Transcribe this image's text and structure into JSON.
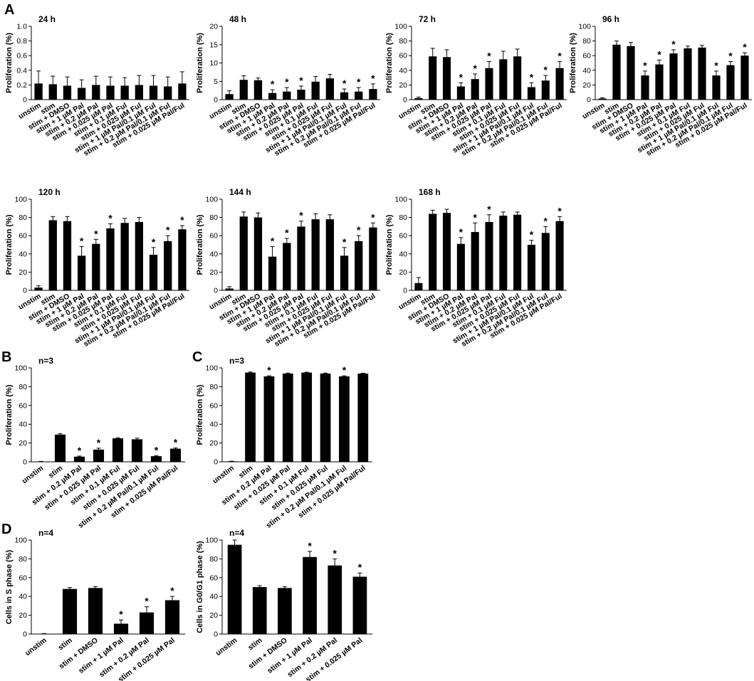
{
  "panel_letters": [
    "A",
    "B",
    "C",
    "D"
  ],
  "chart_data": [
    {
      "type": "bar",
      "panel": "A",
      "title": "24 h",
      "ylabel": "Proliferation (%)",
      "ylim": [
        0,
        1.0
      ],
      "yticks": [
        "0",
        "0.2",
        "0.4",
        "0.6",
        "0.8",
        "1.0"
      ],
      "grid": false,
      "categories": [
        "unstim",
        "stim",
        "stim + DMSO",
        "stim + 1 µM Pal",
        "stim + 0.2 µM Pal",
        "stim + 0.025 µM Pal",
        "stim + 0.1 µM Ful",
        "stim + 0.025 µM Ful",
        "stim + 1 µM Pal/0.1 µM Ful",
        "stim + 0.2 µM Pal/0.1 µM Ful",
        "stim + 0.025 µM Pal/Ful"
      ],
      "values": [
        0.22,
        0.21,
        0.19,
        0.16,
        0.2,
        0.19,
        0.19,
        0.2,
        0.19,
        0.18,
        0.22
      ],
      "errors": [
        0.17,
        0.11,
        0.12,
        0.11,
        0.12,
        0.12,
        0.11,
        0.13,
        0.14,
        0.13,
        0.16
      ],
      "significant": [
        false,
        false,
        false,
        false,
        false,
        false,
        false,
        false,
        false,
        false,
        false
      ]
    },
    {
      "type": "bar",
      "panel": "",
      "title": "48 h",
      "ylabel": "Proliferation (%)",
      "ylim": [
        0,
        20
      ],
      "yticks": [
        "0",
        "5",
        "10",
        "15",
        "20"
      ],
      "grid": false,
      "categories": [
        "unstim",
        "stim",
        "stim + DMSO",
        "stim + 1 µM Pal",
        "stim + 0.2 µM Pal",
        "stim + 0.025 µM Pal",
        "stim + 0.1 µM Ful",
        "stim + 0.025 µM Ful",
        "stim + 1 µM Pal/0.1 µM Ful",
        "stim + 0.2 µM Pal/0.1 µM Ful",
        "stim + 0.025 µM Pal/Ful"
      ],
      "values": [
        1.5,
        5.4,
        5.3,
        1.8,
        2.2,
        2.7,
        4.9,
        5.8,
        2.0,
        2.2,
        2.9
      ],
      "errors": [
        0.9,
        1.1,
        0.6,
        0.9,
        1.1,
        1.0,
        1.4,
        1.1,
        0.9,
        1.1,
        1.4
      ],
      "significant": [
        false,
        false,
        false,
        true,
        true,
        true,
        false,
        false,
        true,
        true,
        true
      ]
    },
    {
      "type": "bar",
      "panel": "",
      "title": "72 h",
      "ylabel": "Proliferation (%)",
      "ylim": [
        0,
        100
      ],
      "yticks": [
        "0",
        "20",
        "40",
        "60",
        "80",
        "100"
      ],
      "grid": false,
      "categories": [
        "unstim",
        "stim",
        "stim + DMSO",
        "stim + 1 µM Pal",
        "stim + 0.2 µM Pal",
        "stim + 0.025 µM Pal",
        "stim + 0.1 µM Ful",
        "stim + 0.025 µM Ful",
        "stim + 1 µM Pal/0.1 µM Ful",
        "stim + 0.2 µM Pal/0.1 µM Ful",
        "stim + 0.025 µM Pal/Ful"
      ],
      "values": [
        2,
        59,
        58,
        18,
        28,
        43,
        55,
        59,
        17,
        26,
        43
      ],
      "errors": [
        1.5,
        11,
        10,
        5,
        7,
        9,
        11,
        10,
        6,
        7,
        9
      ],
      "significant": [
        false,
        false,
        false,
        true,
        true,
        true,
        false,
        false,
        true,
        true,
        true
      ]
    },
    {
      "type": "bar",
      "panel": "",
      "title": "96 h",
      "ylabel": "Proliferation (%)",
      "ylim": [
        0,
        100
      ],
      "yticks": [
        "0",
        "20",
        "40",
        "60",
        "80",
        "100"
      ],
      "grid": false,
      "categories": [
        "unstim",
        "stim",
        "stim + DMSO",
        "stim + 1 µM Pal",
        "stim + 0.2 µM Pal",
        "stim + 0.025 µM Pal",
        "stim + 0.1 µM Ful",
        "stim + 0.025 µM Ful",
        "stim + 1 µM Pal/0.1 µM Ful",
        "stim + 0.2 µM Pal/0.1 µM Ful",
        "stim + 0.025 µM Pal/Ful"
      ],
      "values": [
        1.5,
        75,
        73,
        33,
        48,
        63,
        70,
        71,
        33,
        47,
        60
      ],
      "errors": [
        1,
        5,
        5,
        6,
        6,
        5,
        3,
        3,
        6,
        5,
        4
      ],
      "significant": [
        false,
        false,
        false,
        true,
        true,
        true,
        false,
        false,
        true,
        true,
        true
      ]
    },
    {
      "type": "bar",
      "panel": "",
      "title": "120 h",
      "ylabel": "Proliferation (%)",
      "ylim": [
        0,
        100
      ],
      "yticks": [
        "0",
        "20",
        "40",
        "60",
        "80",
        "100"
      ],
      "grid": false,
      "categories": [
        "unstim",
        "stim",
        "stim + DMSO",
        "stim + 1 µM Pal",
        "stim + 0.2 µM Pal",
        "stim + 0.025 µM Pal",
        "stim + 0.1 µM Ful",
        "stim + 0.025 µM Ful",
        "stim + 1 µM Pal/0.1 µM Ful",
        "stim + 0.2 µM Pal/0.1 µM Ful",
        "stim + 0.025 µM Pal/Ful"
      ],
      "values": [
        3,
        77,
        76,
        38,
        51,
        68,
        74,
        75,
        39,
        54,
        67
      ],
      "errors": [
        2,
        4,
        5,
        10,
        5,
        5,
        5,
        5,
        8,
        6,
        4
      ],
      "significant": [
        false,
        false,
        false,
        true,
        true,
        true,
        false,
        false,
        true,
        true,
        true
      ]
    },
    {
      "type": "bar",
      "panel": "",
      "title": "144 h",
      "ylabel": "Proliferation (%)",
      "ylim": [
        0,
        100
      ],
      "yticks": [
        "0",
        "20",
        "40",
        "60",
        "80",
        "100"
      ],
      "grid": false,
      "categories": [
        "unstim",
        "stim",
        "stim + DMSO",
        "stim + 1 µM Pal",
        "stim + 0.2 µM Pal",
        "stim + 0.025 µM Pal",
        "stim + 0.1 µM Ful",
        "stim + 0.025 µM Ful",
        "stim + 1 µM Pal/0.1 µM Ful",
        "stim + 0.2 µM Pal/0.1 µM Ful",
        "stim + 0.025 µM Pal/Ful"
      ],
      "values": [
        2,
        81,
        80,
        37,
        52,
        70,
        78,
        78,
        38,
        54,
        69
      ],
      "errors": [
        2,
        5,
        5,
        11,
        5,
        6,
        6,
        5,
        9,
        6,
        5
      ],
      "significant": [
        false,
        false,
        false,
        true,
        true,
        true,
        false,
        false,
        true,
        true,
        true
      ]
    },
    {
      "type": "bar",
      "panel": "",
      "title": "168 h",
      "ylabel": "Proliferation (%)",
      "ylim": [
        0,
        100
      ],
      "yticks": [
        "0",
        "20",
        "40",
        "60",
        "80",
        "100"
      ],
      "grid": false,
      "categories": [
        "unstim",
        "stim",
        "stim + DMSO",
        "stim + 1 µM Pal",
        "stim + 0.2 µM Pal",
        "stim + 0.025 µM Pal",
        "stim + 0.1 µM Ful",
        "stim + 0.025 µM Ful",
        "stim + 1 µM Pal/0.1 µM Ful",
        "stim + 0.2 µM Pal/0.1 µM Ful",
        "stim + 0.025 µM Pal/Ful"
      ],
      "values": [
        8,
        84,
        85,
        51,
        64,
        75,
        82,
        83,
        50,
        63,
        76
      ],
      "errors": [
        6,
        4,
        4,
        7,
        10,
        8,
        4,
        3,
        5,
        7,
        5
      ],
      "significant": [
        false,
        false,
        false,
        true,
        true,
        true,
        false,
        false,
        true,
        true,
        true
      ]
    },
    {
      "type": "bar",
      "panel": "B",
      "title": "n=3",
      "ylabel": "Proliferation (%)",
      "ylim": [
        0,
        100
      ],
      "yticks": [
        "0",
        "20",
        "40",
        "60",
        "80",
        "100"
      ],
      "grid": false,
      "categories": [
        "unstim",
        "stim",
        "stim + 0.2 µM Pal",
        "stim + 0.025 µM Pal",
        "stim + 0.1 µM Ful",
        "stim + 0.025 µM Ful",
        "stim + 0.2 µM Pal/0.1 µM Ful",
        "stim + 0.025 µM Pal/Ful"
      ],
      "values": [
        0.3,
        29,
        5.5,
        13,
        25,
        24,
        6,
        14
      ],
      "errors": [
        0.2,
        1,
        0.6,
        1.5,
        0.6,
        1.2,
        0.6,
        0.8
      ],
      "significant": [
        false,
        false,
        true,
        true,
        false,
        false,
        true,
        true
      ]
    },
    {
      "type": "bar",
      "panel": "C",
      "title": "n=3",
      "ylabel": "Proliferation (%)",
      "ylim": [
        0,
        100
      ],
      "yticks": [
        "0",
        "20",
        "40",
        "60",
        "80",
        "100"
      ],
      "grid": false,
      "categories": [
        "unstim",
        "stim",
        "stim + 0.2 µM Pal",
        "stim + 0.025 µM Pal",
        "stim + 0.1 µM Ful",
        "stim + 0.025 µM Ful",
        "stim + 0.2 µM Pal/0.1 µM Ful",
        "stim + 0.025 µM Pal/Ful"
      ],
      "values": [
        0.5,
        95,
        91,
        94,
        95,
        94,
        91,
        94
      ],
      "errors": [
        0.2,
        0.6,
        0.6,
        0.5,
        0.4,
        0.5,
        0.6,
        0.4
      ],
      "significant": [
        false,
        false,
        true,
        false,
        false,
        false,
        true,
        false
      ]
    },
    {
      "type": "bar",
      "panel": "D",
      "title": "n=4",
      "ylabel": "Cells in S phase (%)",
      "ylim": [
        0,
        100
      ],
      "yticks": [
        "0",
        "20",
        "40",
        "60",
        "80",
        "100"
      ],
      "grid": false,
      "categories": [
        "unstim",
        "stim",
        "stim + DMSO",
        "stim + 1 µM Pal",
        "stim + 0.2 µM Pal",
        "stim + 0.025 µM Pal"
      ],
      "values": [
        0.3,
        48,
        49,
        11,
        23,
        36
      ],
      "errors": [
        0.2,
        1.5,
        1.5,
        4,
        6,
        4
      ],
      "significant": [
        false,
        false,
        false,
        true,
        true,
        true
      ]
    },
    {
      "type": "bar",
      "panel": "",
      "title": "n=4",
      "ylabel": "Cells in G0/G1 phase (%)",
      "ylim": [
        0,
        100
      ],
      "yticks": [
        "0",
        "20",
        "40",
        "60",
        "80",
        "100"
      ],
      "grid": false,
      "categories": [
        "unstim",
        "stim",
        "stim + DMSO",
        "stim + 1 µM Pal",
        "stim + 0.2 µM Pal",
        "stim + 0.025 µM Pal"
      ],
      "values": [
        95,
        50,
        49,
        82,
        73,
        61
      ],
      "errors": [
        5,
        1.5,
        1.5,
        6,
        7,
        4
      ],
      "significant": [
        false,
        false,
        false,
        true,
        true,
        true
      ]
    }
  ],
  "significance_marker": "*",
  "colors": {
    "bar": "#000000",
    "axis": "#000000",
    "text": "#000000"
  }
}
